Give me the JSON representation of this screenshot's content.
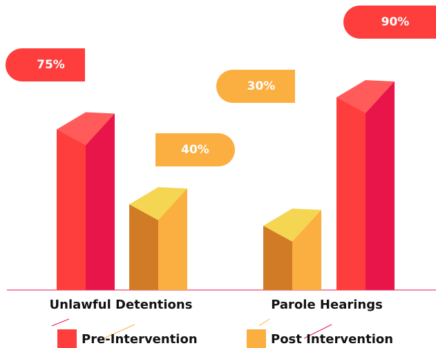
{
  "chart_data": {
    "type": "bar",
    "categories": [
      "Unlawful Detentions",
      "Parole Hearings"
    ],
    "series": [
      {
        "name": "Pre-Intervention",
        "color": "#fe3d3d",
        "values": [
          75,
          90
        ],
        "value_labels": [
          "75%",
          "90%"
        ]
      },
      {
        "name": "Post Intervention",
        "color": "#fbaf41",
        "values": [
          40,
          30
        ],
        "value_labels": [
          "40%",
          "30%"
        ]
      }
    ]
  }
}
